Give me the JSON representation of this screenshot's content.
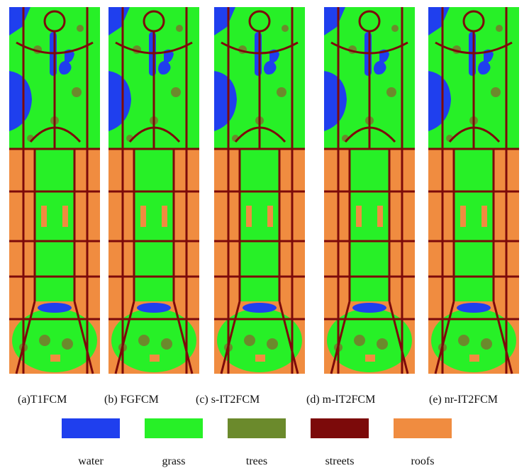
{
  "captions": [
    "(a)T1FCM",
    "(b) FGFCM",
    "(c) s-IT2FCM",
    "(d) m-IT2FCM",
    "(e) nr-IT2FCM"
  ],
  "legend": [
    {
      "label": "water",
      "color": "#1f3fee"
    },
    {
      "label": "grass",
      "color": "#27f027"
    },
    {
      "label": "trees",
      "color": "#6b8a2c"
    },
    {
      "label": "streets",
      "color": "#7c0a0a"
    },
    {
      "label": "roofs",
      "color": "#f08c40"
    }
  ]
}
